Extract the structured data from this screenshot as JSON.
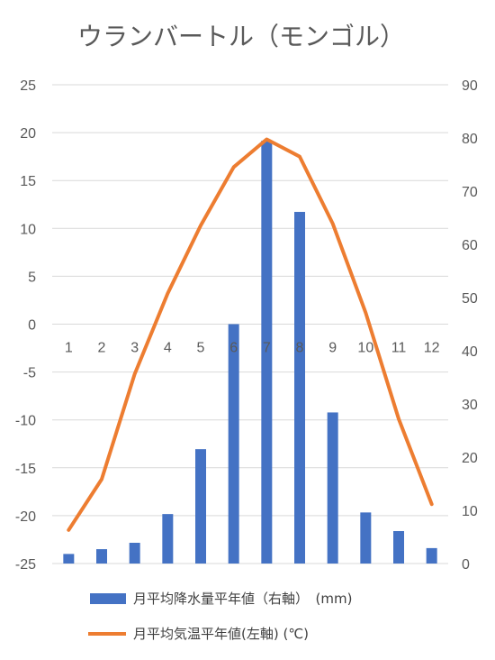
{
  "chart_data": {
    "type": "bar+line",
    "title": "ウランバートル（モンゴル）",
    "categories": [
      "1",
      "2",
      "3",
      "4",
      "5",
      "6",
      "7",
      "8",
      "9",
      "10",
      "11",
      "12"
    ],
    "series": [
      {
        "name": "月平均降水量平年値（右軸）　(mm)",
        "type": "bar",
        "axis": "right",
        "color": "#4472C4",
        "values": [
          1.8,
          2.7,
          3.9,
          9.3,
          21.5,
          45.0,
          79.5,
          66.1,
          28.4,
          9.6,
          6.1,
          2.9
        ]
      },
      {
        "name": "月平均気温平年値(左軸) (℃)",
        "type": "line",
        "axis": "left",
        "color": "#ED7D31",
        "values": [
          -21.5,
          -16.2,
          -5.2,
          3.2,
          10.3,
          16.4,
          19.3,
          17.5,
          10.5,
          1.2,
          -9.9,
          -18.8
        ]
      }
    ],
    "left_axis": {
      "min": -25,
      "max": 25,
      "step": 5,
      "ticks": [
        "25",
        "20",
        "15",
        "10",
        "5",
        "0",
        "-5",
        "-10",
        "-15",
        "-20",
        "-25"
      ]
    },
    "right_axis": {
      "min": 0,
      "max": 90,
      "step": 10,
      "ticks": [
        "90",
        "80",
        "70",
        "60",
        "50",
        "40",
        "30",
        "20",
        "10",
        "0"
      ]
    },
    "grid": "horizontal",
    "category_labels_at": "y=0 (left axis)",
    "legend_position": "bottom"
  }
}
